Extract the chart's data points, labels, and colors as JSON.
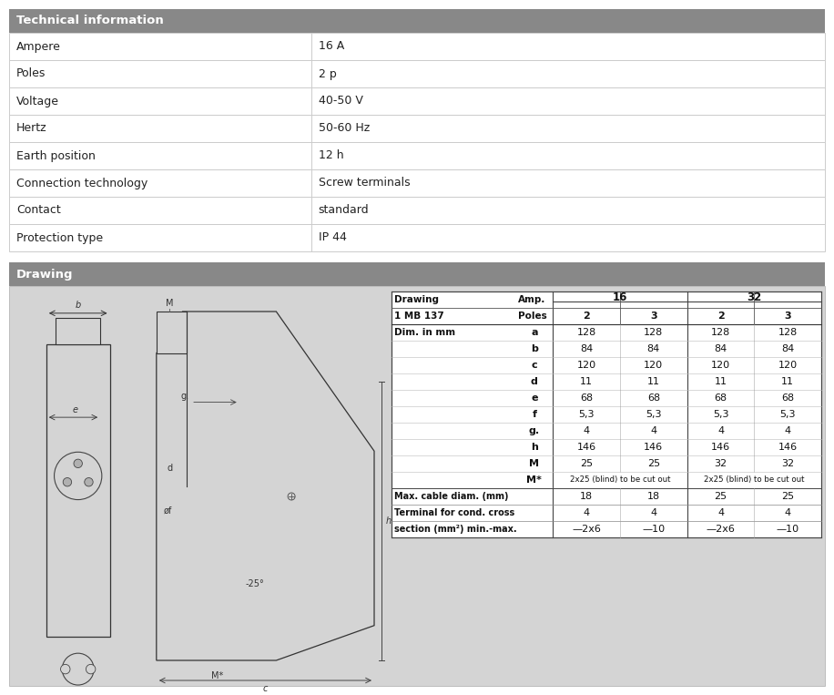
{
  "bg_color": "#e8e8e8",
  "header_color": "#8c8c8c",
  "white": "#ffffff",
  "border_color": "#aaaaaa",
  "text_dark": "#1a1a1a",
  "tech_title": "Technical information",
  "tech_rows": [
    [
      "Ampere",
      "16 A"
    ],
    [
      "Poles",
      "2 p"
    ],
    [
      "Voltage",
      "40-50 V"
    ],
    [
      "Hertz",
      "50-60 Hz"
    ],
    [
      "Earth position",
      "12 h"
    ],
    [
      "Connection technology",
      "Screw terminals"
    ],
    [
      "Contact",
      "standard"
    ],
    [
      "Protection type",
      "IP 44"
    ]
  ],
  "draw_title": "Drawing",
  "dim_rows": [
    [
      "a",
      "128",
      "128",
      "128",
      "128"
    ],
    [
      "b",
      "84",
      "84",
      "84",
      "84"
    ],
    [
      "c",
      "120",
      "120",
      "120",
      "120"
    ],
    [
      "d",
      "11",
      "11",
      "11",
      "11"
    ],
    [
      "e",
      "68",
      "68",
      "68",
      "68"
    ],
    [
      "f",
      "5,3",
      "5,3",
      "5,3",
      "5,3"
    ],
    [
      "g.",
      "4",
      "4",
      "4",
      "4"
    ],
    [
      "h",
      "146",
      "146",
      "146",
      "146"
    ],
    [
      "M",
      "25",
      "25",
      "32",
      "32"
    ],
    [
      "M*",
      "2x25 (blind) to be cut out",
      "2x25 (blind) to be cut out"
    ]
  ],
  "extra_rows": [
    [
      "Max. cable diam. (mm)",
      "18",
      "18",
      "25",
      "25"
    ],
    [
      "Terminal for cond. cross",
      "4",
      "4",
      "4",
      "4"
    ],
    [
      "section (mm²) min.-max.",
      "—2x6",
      "—10",
      "—2x6",
      "—10"
    ]
  ]
}
